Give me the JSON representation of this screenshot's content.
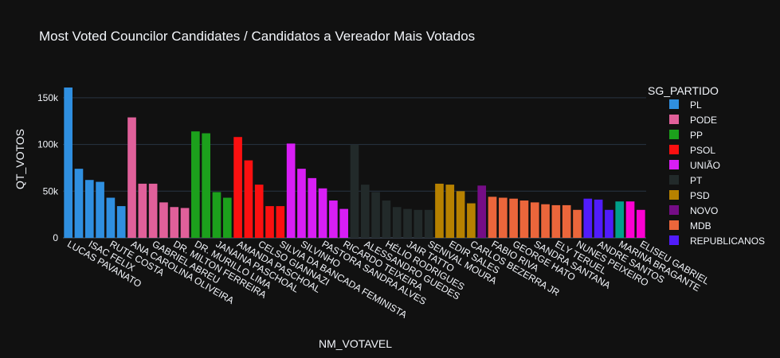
{
  "chart_data": {
    "type": "bar",
    "title": "Most Voted Councilor Candidates / Candidatos a Vereador Mais Votados",
    "xlabel": "NM_VOTAVEL",
    "ylabel": "QT_VOTOS",
    "legend_title": "SG_PARTIDO",
    "ylim": [
      0,
      160000
    ],
    "yticks": [
      0,
      50000,
      100000,
      150000
    ],
    "ytick_labels": [
      "0",
      "50k",
      "100k",
      "150k"
    ],
    "grid": true,
    "legend_position": "right",
    "series": [
      {
        "name": "PL",
        "color": "#2f8fe0",
        "values": [
          161000,
          74000,
          62000,
          60000,
          43000,
          34000
        ]
      },
      {
        "name": "PODE",
        "color": "#e0609a",
        "values": [
          129000,
          58000,
          58000,
          38000,
          33000,
          32000
        ]
      },
      {
        "name": "PP",
        "color": "#1ca01c",
        "values": [
          114000,
          112000,
          49000,
          43000
        ]
      },
      {
        "name": "PSOL",
        "color": "#fb1010",
        "values": [
          108000,
          83000,
          57000,
          34000,
          34000
        ]
      },
      {
        "name": "UNIÃO",
        "color": "#d81ef5",
        "values": [
          101000,
          74000,
          64000,
          53000,
          40000,
          31000
        ]
      },
      {
        "name": "PT",
        "color": "#222a2a",
        "values": [
          100000,
          57000,
          49000,
          40000,
          33000,
          31000,
          30000,
          30000
        ]
      },
      {
        "name": "PSD",
        "color": "#b68100",
        "values": [
          58000,
          57000,
          50000,
          37000
        ]
      },
      {
        "name": "NOVO",
        "color": "#750d86",
        "values": [
          56000
        ]
      },
      {
        "name": "MDB",
        "color": "#eb663b",
        "values": [
          44000,
          43000,
          42000,
          40000,
          38000,
          36000,
          35000,
          35000,
          30000
        ]
      },
      {
        "name": "REPUBLICANOS",
        "color": "#511cfb",
        "values": [
          42000,
          41000,
          30000
        ]
      },
      {
        "name": "",
        "color": "#00a08b",
        "values": [
          39000
        ]
      },
      {
        "name": "",
        "color": "#fb00d1",
        "values": [
          39000,
          30000
        ]
      }
    ],
    "tick_labels": [
      {
        "label": "LUCAS PAVANATO",
        "index": 0
      },
      {
        "label": "ISAC FELIX",
        "index": 2
      },
      {
        "label": "RUTE COSTA",
        "index": 4
      },
      {
        "label": "ANA CAROLINA OLIVEIRA",
        "index": 6
      },
      {
        "label": "GABRIEL ABREU",
        "index": 8
      },
      {
        "label": "DR. MILTON FERREIRA",
        "index": 10
      },
      {
        "label": "DR. MURILLO LIMA",
        "index": 12
      },
      {
        "label": "JANAINA PASCHOAL",
        "index": 14
      },
      {
        "label": "AMANDA PASCHOAL",
        "index": 16
      },
      {
        "label": "CELSO GIANNAZI",
        "index": 18
      },
      {
        "label": "SILVIA DA BANCADA FEMINISTA",
        "index": 20
      },
      {
        "label": "SILVINHO",
        "index": 22
      },
      {
        "label": "PASTORA SANDRA ALVES",
        "index": 24
      },
      {
        "label": "RICARDO TEIXEIRA",
        "index": 26
      },
      {
        "label": "ALESSANDRO GUEDES",
        "index": 28
      },
      {
        "label": "HÉLIO RODRIGUES",
        "index": 30
      },
      {
        "label": "JAIR TATTO",
        "index": 32
      },
      {
        "label": "SENIVAL MOURA",
        "index": 34
      },
      {
        "label": "EDIR SALES",
        "index": 36
      },
      {
        "label": "CARLOS BEZERRA JR",
        "index": 38
      },
      {
        "label": "FABIO RIVA",
        "index": 40
      },
      {
        "label": "GEORGE HATO",
        "index": 42
      },
      {
        "label": "SANDRA SANTANA",
        "index": 44
      },
      {
        "label": "ELY TERUEL",
        "index": 46
      },
      {
        "label": "NUNES PEIXEIRO",
        "index": 48
      },
      {
        "label": "ANDRE SANTOS",
        "index": 50
      },
      {
        "label": "MARINA BRAGANTE",
        "index": 52
      },
      {
        "label": "ELISEU GABRIEL",
        "index": 54
      }
    ]
  }
}
